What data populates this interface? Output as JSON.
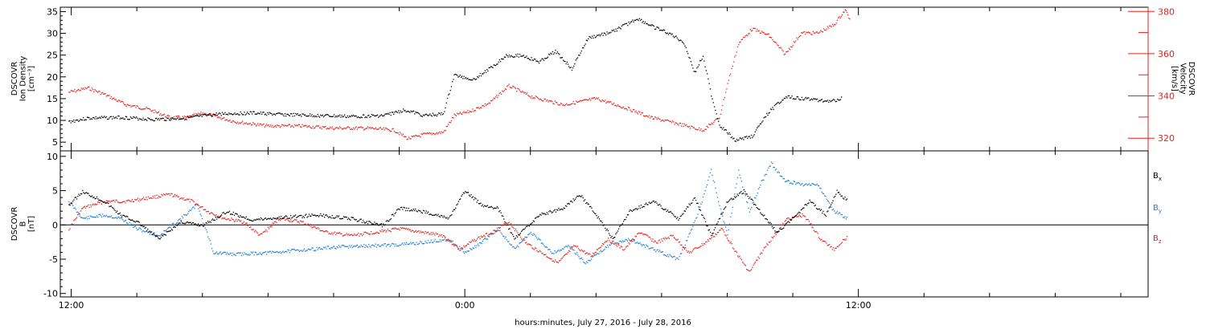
{
  "chart_data": [
    {
      "type": "scatter",
      "panel": "top",
      "ylabel_left": [
        "DSCOVR",
        "Ion Density",
        "[cm⁻³]"
      ],
      "ylabel_right": [
        "DSCOVR",
        "Velocity",
        "[km/s]"
      ],
      "left_axis": {
        "ylim": [
          3,
          36
        ],
        "ticks": [
          5,
          10,
          15,
          20,
          25,
          30,
          35
        ],
        "color": "#000000"
      },
      "right_axis": {
        "ylim": [
          314,
          382
        ],
        "ticks": [
          320,
          340,
          360,
          380
        ],
        "color": "#e8201a"
      },
      "x": {
        "start": "2016-07-27T11:40",
        "end": "2016-07-28T20:50"
      },
      "series": [
        {
          "name": "Ion Density",
          "axis": "left",
          "color": "#000000",
          "points": [
            [
              "2016-07-27T11:55",
              9.8
            ],
            [
              "2016-07-27T12:30",
              10.6
            ],
            [
              "2016-07-27T13:30",
              10.8
            ],
            [
              "2016-07-27T14:30",
              10.3
            ],
            [
              "2016-07-27T15:30",
              10.6
            ],
            [
              "2016-07-27T16:30",
              11.6
            ],
            [
              "2016-07-27T17:30",
              11.8
            ],
            [
              "2016-07-27T18:30",
              11.4
            ],
            [
              "2016-07-27T19:30",
              11.2
            ],
            [
              "2016-07-27T20:30",
              11.0
            ],
            [
              "2016-07-27T21:30",
              11.2
            ],
            [
              "2016-07-27T22:10",
              12.5
            ],
            [
              "2016-07-27T22:45",
              11.2
            ],
            [
              "2016-07-27T23:20",
              11.6
            ],
            [
              "2016-07-27T23:40",
              20.5
            ],
            [
              "2016-07-28T00:15",
              19.5
            ],
            [
              "2016-07-28T00:45",
              22.0
            ],
            [
              "2016-07-28T01:15",
              25.0
            ],
            [
              "2016-07-28T01:45",
              25.0
            ],
            [
              "2016-07-28T02:15",
              23.5
            ],
            [
              "2016-07-28T02:45",
              26.0
            ],
            [
              "2016-07-28T03:15",
              22.0
            ],
            [
              "2016-07-28T03:45",
              29.0
            ],
            [
              "2016-07-28T04:30",
              30.5
            ],
            [
              "2016-07-28T05:15",
              33.5
            ],
            [
              "2016-07-28T05:45",
              31.5
            ],
            [
              "2016-07-28T06:15",
              30.0
            ],
            [
              "2016-07-28T06:40",
              28.0
            ],
            [
              "2016-07-28T07:00",
              21.0
            ],
            [
              "2016-07-28T07:15",
              25.0
            ],
            [
              "2016-07-28T07:30",
              16.0
            ],
            [
              "2016-07-28T07:45",
              9.0
            ],
            [
              "2016-07-28T08:15",
              5.5
            ],
            [
              "2016-07-28T08:45",
              6.5
            ],
            [
              "2016-07-28T09:15",
              12.0
            ],
            [
              "2016-07-28T09:45",
              15.5
            ],
            [
              "2016-07-28T10:30",
              15.0
            ],
            [
              "2016-07-28T11:10",
              14.5
            ],
            [
              "2016-07-28T11:30",
              15.2
            ]
          ]
        },
        {
          "name": "Velocity",
          "axis": "right",
          "color": "#e8201a",
          "points": [
            [
              "2016-07-27T11:55",
              342
            ],
            [
              "2016-07-27T12:30",
              344
            ],
            [
              "2016-07-27T13:00",
              341
            ],
            [
              "2016-07-27T13:40",
              336
            ],
            [
              "2016-07-27T14:20",
              334
            ],
            [
              "2016-07-27T15:00",
              330
            ],
            [
              "2016-07-27T15:30",
              330
            ],
            [
              "2016-07-27T16:00",
              332
            ],
            [
              "2016-07-27T17:00",
              328
            ],
            [
              "2016-07-27T18:00",
              326
            ],
            [
              "2016-07-27T19:00",
              326
            ],
            [
              "2016-07-27T20:00",
              325
            ],
            [
              "2016-07-27T21:00",
              325
            ],
            [
              "2016-07-27T21:50",
              324
            ],
            [
              "2016-07-27T22:15",
              320
            ],
            [
              "2016-07-27T22:45",
              322
            ],
            [
              "2016-07-27T23:20",
              323
            ],
            [
              "2016-07-27T23:40",
              331
            ],
            [
              "2016-07-28T00:10",
              333
            ],
            [
              "2016-07-28T00:45",
              337
            ],
            [
              "2016-07-28T01:20",
              345
            ],
            [
              "2016-07-28T02:00",
              340
            ],
            [
              "2016-07-28T03:00",
              336
            ],
            [
              "2016-07-28T04:00",
              339
            ],
            [
              "2016-07-28T05:00",
              334
            ],
            [
              "2016-07-28T05:40",
              330
            ],
            [
              "2016-07-28T06:30",
              327
            ],
            [
              "2016-07-28T07:15",
              324
            ],
            [
              "2016-07-28T07:45",
              330
            ],
            [
              "2016-07-28T08:00",
              346
            ],
            [
              "2016-07-28T08:20",
              365
            ],
            [
              "2016-07-28T08:45",
              372
            ],
            [
              "2016-07-28T09:15",
              369
            ],
            [
              "2016-07-28T09:45",
              360
            ],
            [
              "2016-07-28T10:15",
              370
            ],
            [
              "2016-07-28T10:45",
              370
            ],
            [
              "2016-07-28T11:15",
              374
            ],
            [
              "2016-07-28T11:35",
              381
            ],
            [
              "2016-07-28T11:45",
              376
            ]
          ]
        }
      ]
    },
    {
      "type": "scatter",
      "panel": "bottom",
      "ylabel_left": [
        "DSCOVR",
        "B",
        "[nT]"
      ],
      "left_axis": {
        "ylim": [
          -10.5,
          10.8
        ],
        "ticks": [
          -10,
          -5,
          0,
          5,
          10
        ],
        "zero_line": true
      },
      "x": {
        "start": "2016-07-27T11:40",
        "end": "2016-07-28T20:50"
      },
      "legend_position": "right",
      "series": [
        {
          "name": "B",
          "subscript": "x",
          "color": "#000000",
          "points": [
            [
              "2016-07-27T11:55",
              3.0
            ],
            [
              "2016-07-27T12:20",
              4.9
            ],
            [
              "2016-07-27T13:00",
              3.5
            ],
            [
              "2016-07-27T13:30",
              1.5
            ],
            [
              "2016-07-27T14:00",
              0.5
            ],
            [
              "2016-07-27T14:40",
              -2.0
            ],
            [
              "2016-07-27T15:20",
              0.5
            ],
            [
              "2016-07-27T16:00",
              0.0
            ],
            [
              "2016-07-27T16:45",
              2.0
            ],
            [
              "2016-07-27T17:30",
              0.8
            ],
            [
              "2016-07-27T18:30",
              1.2
            ],
            [
              "2016-07-27T19:30",
              1.5
            ],
            [
              "2016-07-27T20:30",
              1.0
            ],
            [
              "2016-07-27T21:30",
              0.0
            ],
            [
              "2016-07-27T22:00",
              2.5
            ],
            [
              "2016-07-27T22:45",
              2.0
            ],
            [
              "2016-07-27T23:30",
              1.0
            ],
            [
              "2016-07-28T00:00",
              5.0
            ],
            [
              "2016-07-28T00:30",
              3.0
            ],
            [
              "2016-07-28T01:00",
              2.5
            ],
            [
              "2016-07-28T01:30",
              -2.0
            ],
            [
              "2016-07-28T02:15",
              1.5
            ],
            [
              "2016-07-28T03:00",
              2.5
            ],
            [
              "2016-07-28T03:30",
              4.5
            ],
            [
              "2016-07-28T04:00",
              1.5
            ],
            [
              "2016-07-28T04:30",
              -2.0
            ],
            [
              "2016-07-28T05:00",
              2.0
            ],
            [
              "2016-07-28T05:45",
              3.5
            ],
            [
              "2016-07-28T06:30",
              1.0
            ],
            [
              "2016-07-28T07:00",
              4.0
            ],
            [
              "2016-07-28T07:30",
              -1.5
            ],
            [
              "2016-07-28T08:00",
              3.5
            ],
            [
              "2016-07-28T08:30",
              5.0
            ],
            [
              "2016-07-28T09:00",
              2.0
            ],
            [
              "2016-07-28T09:30",
              -1.0
            ],
            [
              "2016-07-28T10:00",
              1.0
            ],
            [
              "2016-07-28T10:30",
              3.5
            ],
            [
              "2016-07-28T11:00",
              1.5
            ],
            [
              "2016-07-28T11:20",
              5.0
            ],
            [
              "2016-07-28T11:40",
              3.5
            ]
          ]
        },
        {
          "name": "B",
          "subscript": "y",
          "color": "#1a7fd9",
          "points": [
            [
              "2016-07-27T11:55",
              3.5
            ],
            [
              "2016-07-27T12:20",
              1.0
            ],
            [
              "2016-07-27T13:00",
              1.5
            ],
            [
              "2016-07-27T13:30",
              1.0
            ],
            [
              "2016-07-27T14:00",
              -0.5
            ],
            [
              "2016-07-27T14:40",
              -1.5
            ],
            [
              "2016-07-27T15:20",
              1.0
            ],
            [
              "2016-07-27T15:50",
              3.0
            ],
            [
              "2016-07-27T16:20",
              -4.0
            ],
            [
              "2016-07-27T17:00",
              -4.2
            ],
            [
              "2016-07-27T18:00",
              -4.0
            ],
            [
              "2016-07-27T19:00",
              -3.6
            ],
            [
              "2016-07-27T20:00",
              -3.2
            ],
            [
              "2016-07-27T21:00",
              -3.0
            ],
            [
              "2016-07-27T22:00",
              -2.8
            ],
            [
              "2016-07-27T22:45",
              -2.5
            ],
            [
              "2016-07-27T23:30",
              -2.0
            ],
            [
              "2016-07-28T00:00",
              -4.0
            ],
            [
              "2016-07-28T00:30",
              -2.5
            ],
            [
              "2016-07-28T01:00",
              -0.5
            ],
            [
              "2016-07-28T01:30",
              -3.5
            ],
            [
              "2016-07-28T02:00",
              -1.0
            ],
            [
              "2016-07-28T02:40",
              -4.0
            ],
            [
              "2016-07-28T03:10",
              -3.0
            ],
            [
              "2016-07-28T03:40",
              -5.5
            ],
            [
              "2016-07-28T04:20",
              -3.0
            ],
            [
              "2016-07-28T05:00",
              -2.0
            ],
            [
              "2016-07-28T05:45",
              -3.5
            ],
            [
              "2016-07-28T06:30",
              -5.0
            ],
            [
              "2016-07-28T07:00",
              0.5
            ],
            [
              "2016-07-28T07:15",
              4.0
            ],
            [
              "2016-07-28T07:30",
              8.0
            ],
            [
              "2016-07-28T07:45",
              3.0
            ],
            [
              "2016-07-28T08:00",
              -1.5
            ],
            [
              "2016-07-28T08:20",
              8.0
            ],
            [
              "2016-07-28T08:40",
              2.0
            ],
            [
              "2016-07-28T09:00",
              6.0
            ],
            [
              "2016-07-28T09:20",
              9.0
            ],
            [
              "2016-07-28T09:45",
              6.5
            ],
            [
              "2016-07-28T10:15",
              6.0
            ],
            [
              "2016-07-28T10:45",
              6.0
            ],
            [
              "2016-07-28T11:15",
              2.0
            ],
            [
              "2016-07-28T11:40",
              1.0
            ]
          ]
        },
        {
          "name": "B",
          "subscript": "z",
          "color": "#e8201a",
          "points": [
            [
              "2016-07-27T11:55",
              -0.5
            ],
            [
              "2016-07-27T12:20",
              2.5
            ],
            [
              "2016-07-27T13:00",
              3.5
            ],
            [
              "2016-07-27T13:40",
              3.5
            ],
            [
              "2016-07-27T14:20",
              4.0
            ],
            [
              "2016-07-27T15:00",
              4.5
            ],
            [
              "2016-07-27T15:40",
              3.5
            ],
            [
              "2016-07-27T16:10",
              2.0
            ],
            [
              "2016-07-27T16:40",
              1.0
            ],
            [
              "2016-07-27T17:15",
              0.5
            ],
            [
              "2016-07-27T17:45",
              -1.5
            ],
            [
              "2016-07-27T18:20",
              1.0
            ],
            [
              "2016-07-27T19:00",
              0.5
            ],
            [
              "2016-07-27T19:45",
              -1.0
            ],
            [
              "2016-07-27T20:30",
              -1.5
            ],
            [
              "2016-07-27T21:15",
              -1.0
            ],
            [
              "2016-07-27T22:00",
              -0.5
            ],
            [
              "2016-07-27T22:40",
              -1.0
            ],
            [
              "2016-07-27T23:20",
              -1.5
            ],
            [
              "2016-07-27T23:50",
              -3.5
            ],
            [
              "2016-07-28T00:20",
              -2.0
            ],
            [
              "2016-07-28T00:50",
              -1.0
            ],
            [
              "2016-07-28T01:20",
              0.5
            ],
            [
              "2016-07-28T01:50",
              -2.5
            ],
            [
              "2016-07-28T02:20",
              -4.0
            ],
            [
              "2016-07-28T02:50",
              -5.5
            ],
            [
              "2016-07-28T03:20",
              -3.0
            ],
            [
              "2016-07-28T03:50",
              -4.5
            ],
            [
              "2016-07-28T04:20",
              -2.0
            ],
            [
              "2016-07-28T04:50",
              -3.5
            ],
            [
              "2016-07-28T05:20",
              -1.0
            ],
            [
              "2016-07-28T05:50",
              -2.5
            ],
            [
              "2016-07-28T06:20",
              -1.5
            ],
            [
              "2016-07-28T06:50",
              -4.0
            ],
            [
              "2016-07-28T07:20",
              -2.5
            ],
            [
              "2016-07-28T07:50",
              -0.5
            ],
            [
              "2016-07-28T08:20",
              -4.5
            ],
            [
              "2016-07-28T08:40",
              -6.8
            ],
            [
              "2016-07-28T09:10",
              -3.0
            ],
            [
              "2016-07-28T09:30",
              -1.0
            ],
            [
              "2016-07-28T09:50",
              1.0
            ],
            [
              "2016-07-28T10:20",
              1.5
            ],
            [
              "2016-07-28T10:50",
              -2.0
            ],
            [
              "2016-07-28T11:15",
              -3.5
            ],
            [
              "2016-07-28T11:40",
              -1.5
            ]
          ]
        }
      ]
    }
  ],
  "x_axis": {
    "tick_labels": [
      {
        "time": "2016-07-27T12:00",
        "label": "12:00"
      },
      {
        "time": "2016-07-28T00:00",
        "label": "0:00"
      },
      {
        "time": "2016-07-28T12:00",
        "label": "12:00"
      }
    ],
    "minor_tick_hours": 2,
    "xlabel": "hours:minutes, July 27, 2016 - July 28, 2016"
  }
}
